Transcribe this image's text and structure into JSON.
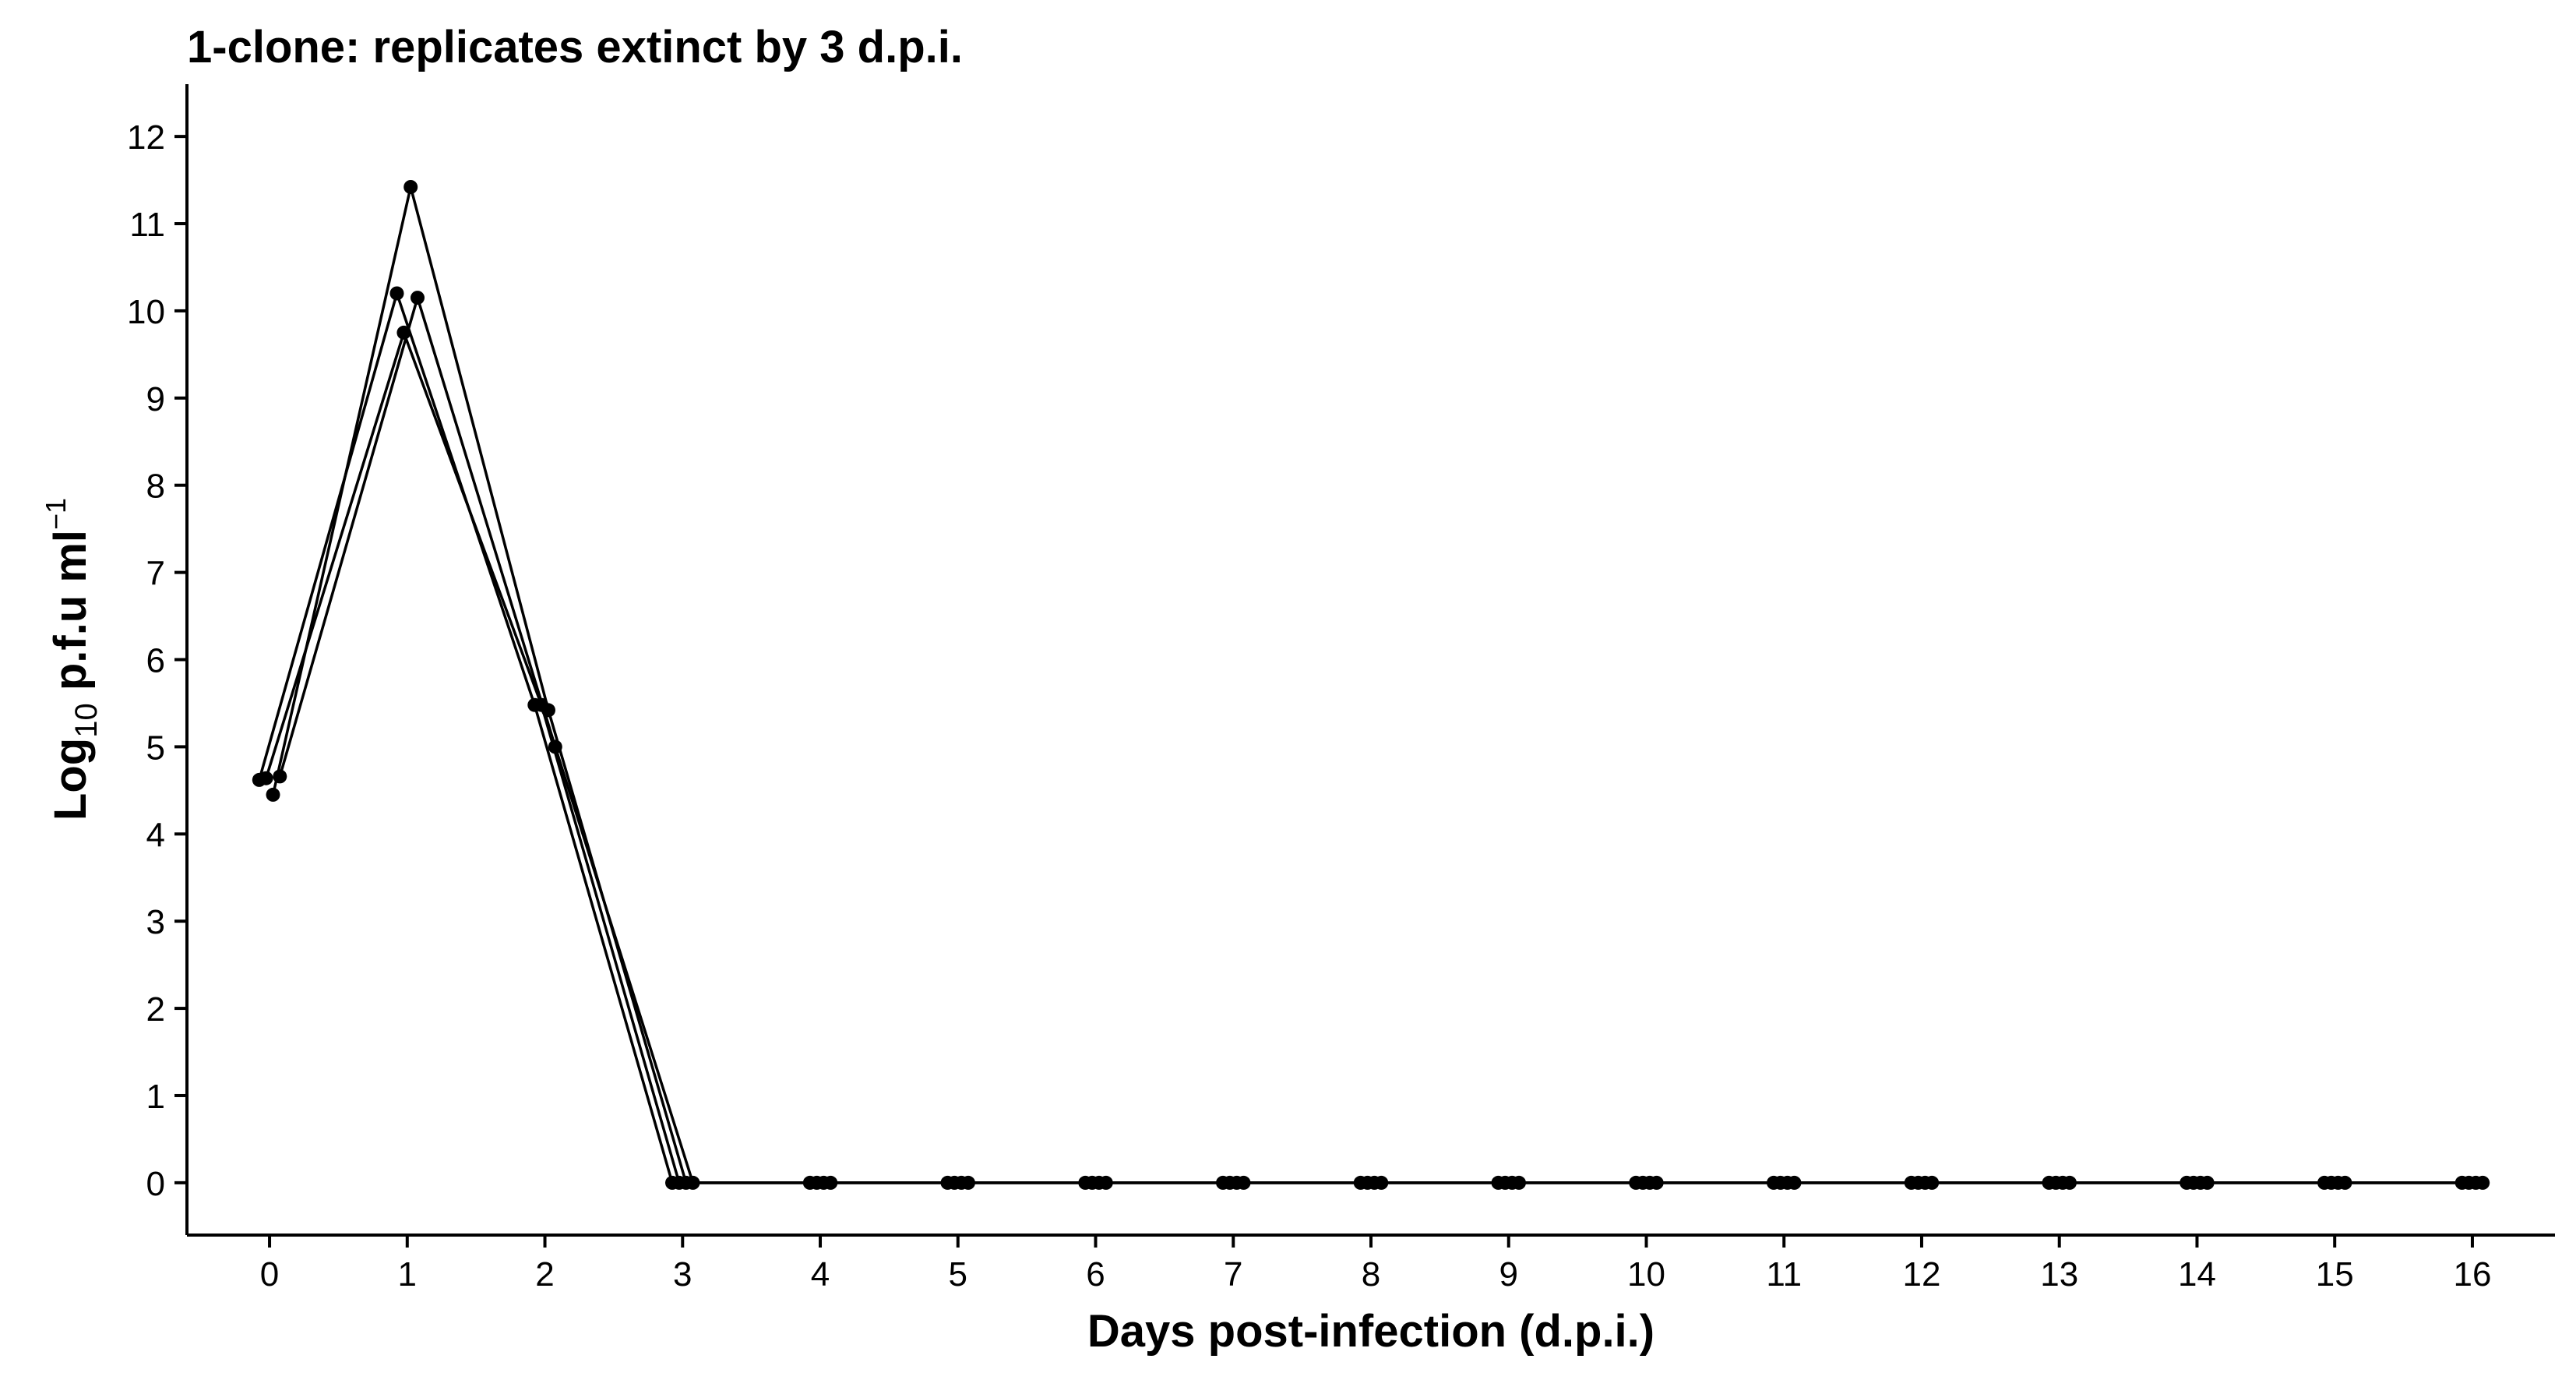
{
  "chart_data": {
    "type": "line",
    "title": "1-clone: replicates extinct by 3 d.p.i.",
    "xlabel": "Days post-infection (d.p.i.)",
    "ylabel": {
      "prefix": "Log",
      "subscript": "10",
      "middle": " p.f.u ml",
      "superscript": "−1"
    },
    "x_ticks": [
      0,
      1,
      2,
      3,
      4,
      5,
      6,
      7,
      8,
      9,
      10,
      11,
      12,
      13,
      14,
      15,
      16
    ],
    "y_ticks": [
      0,
      1,
      2,
      3,
      4,
      5,
      6,
      7,
      8,
      9,
      10,
      11,
      12
    ],
    "xlim": [
      -0.6,
      16.6
    ],
    "ylim": [
      -0.6,
      12.6
    ],
    "grid": false,
    "legend": "none",
    "line_color": "#000000",
    "point_color": "#000000",
    "x": [
      0,
      1,
      2,
      3,
      4,
      5,
      6,
      7,
      8,
      9,
      10,
      11,
      12,
      13,
      14,
      15,
      16
    ],
    "series": [
      {
        "values": [
          4.62,
          10.2,
          5.48,
          0,
          0,
          0,
          0,
          0,
          0,
          0,
          0,
          0,
          0,
          0,
          0,
          0,
          0
        ]
      },
      {
        "values": [
          4.64,
          9.75,
          5.48,
          0,
          0,
          0,
          0,
          0,
          0,
          0,
          0,
          0,
          0,
          0,
          0,
          0,
          0
        ]
      },
      {
        "values": [
          4.45,
          11.42,
          5.42,
          0,
          0,
          0,
          0,
          0,
          0,
          0,
          0,
          0,
          0,
          0,
          0,
          0,
          0
        ]
      },
      {
        "values": [
          4.66,
          10.15,
          5.0,
          0,
          0,
          0,
          0,
          0,
          0,
          0,
          0,
          0,
          0,
          0,
          0,
          0,
          0
        ]
      }
    ],
    "dodge": [
      -0.075,
      -0.025,
      0.025,
      0.075
    ]
  }
}
